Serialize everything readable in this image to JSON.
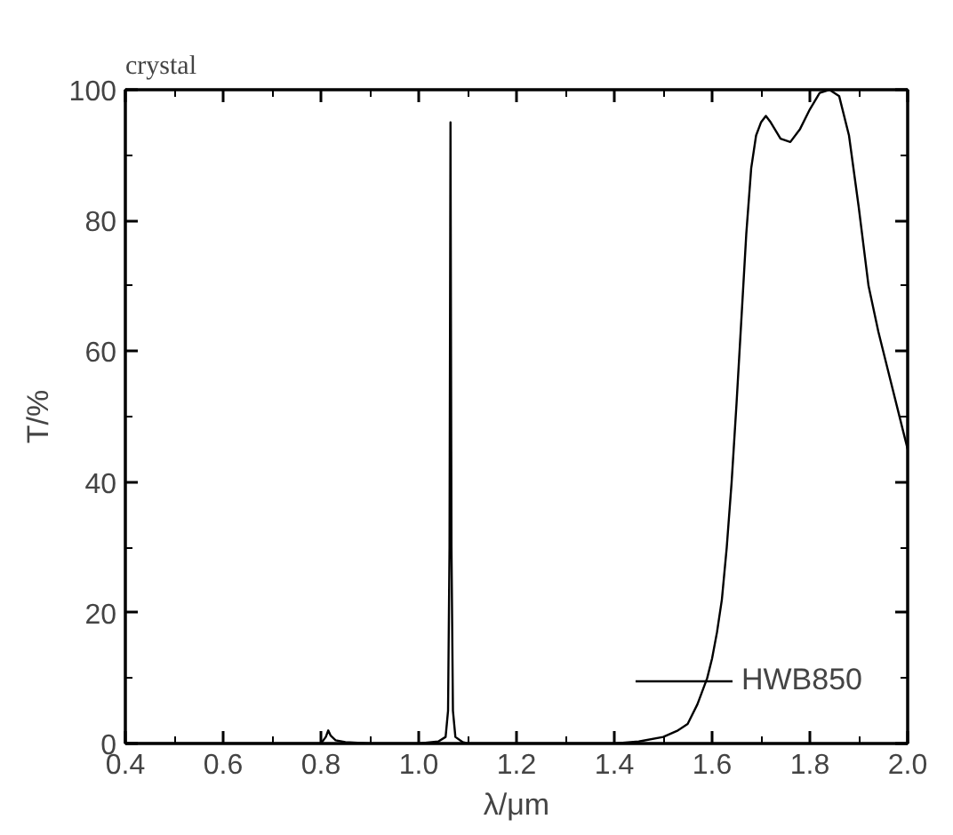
{
  "chart_data": {
    "type": "line",
    "title": "crystal",
    "xlabel": "λ/μm",
    "ylabel": "T/%",
    "xlim": [
      0.4,
      2.0
    ],
    "ylim": [
      0,
      100
    ],
    "xticks": [
      0.4,
      {
        "value": 0.5,
        "label": null
      },
      0.6,
      {
        "value": 0.7,
        "label": null
      },
      0.8,
      {
        "value": 0.9,
        "label": null
      },
      "1.0",
      {
        "value": 1.1,
        "label": null
      },
      1.2,
      {
        "value": 1.3,
        "label": null
      },
      1.4,
      {
        "value": 1.5,
        "label": null
      },
      1.6,
      {
        "value": 1.7,
        "label": null
      },
      1.8,
      {
        "value": 1.9,
        "label": null
      },
      "2.0"
    ],
    "yticks": [
      0,
      {
        "value": 10,
        "label": null
      },
      20,
      {
        "value": 30,
        "label": null
      },
      40,
      {
        "value": 50,
        "label": null
      },
      60,
      {
        "value": 70,
        "label": null
      },
      80,
      {
        "value": 90,
        "label": null
      },
      100
    ],
    "legend": "bottom right",
    "grid": false,
    "marker": "none",
    "line_style": "solid",
    "series": [
      {
        "name": "HWB850",
        "color": "#000000",
        "x": [
          0.4,
          0.6,
          0.8,
          0.81,
          0.815,
          0.82,
          0.83,
          0.85,
          0.9,
          1.0,
          1.04,
          1.055,
          1.06,
          1.063,
          1.065,
          1.067,
          1.07,
          1.075,
          1.09,
          1.1,
          1.2,
          1.3,
          1.4,
          1.45,
          1.5,
          1.53,
          1.55,
          1.57,
          1.59,
          1.6,
          1.61,
          1.62,
          1.63,
          1.64,
          1.65,
          1.66,
          1.67,
          1.68,
          1.69,
          1.7,
          1.71,
          1.72,
          1.74,
          1.76,
          1.78,
          1.8,
          1.82,
          1.84,
          1.86,
          1.88,
          1.9,
          1.92,
          1.94,
          1.96,
          1.98,
          2.0
        ],
        "values": [
          0,
          0,
          0,
          1,
          2,
          1.2,
          0.5,
          0.2,
          0,
          0,
          0.3,
          1,
          5,
          30,
          95,
          30,
          5,
          1,
          0.2,
          0,
          0,
          0,
          0,
          0.3,
          1,
          2,
          3,
          6,
          10,
          13,
          17,
          22,
          30,
          40,
          52,
          65,
          78,
          88,
          93,
          95,
          96,
          95,
          92.5,
          92,
          94,
          97,
          99.5,
          100,
          99,
          93,
          82,
          70,
          63,
          57,
          51,
          45
        ]
      }
    ]
  }
}
